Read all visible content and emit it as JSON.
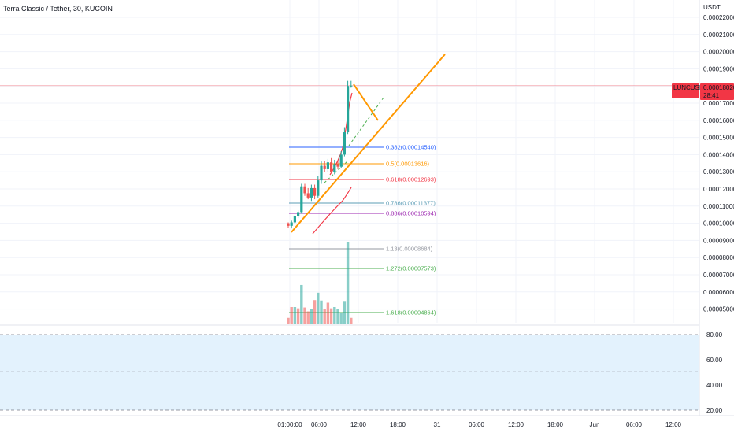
{
  "header": {
    "title": "Terra Classic / Tether, 30, KUCOIN"
  },
  "price_axis": {
    "currency": "USDT",
    "ticks": [
      "0.00022000",
      "0.00021000",
      "0.00020000",
      "0.00019000",
      "0.00018000",
      "0.00017000",
      "0.00016000",
      "0.00015000",
      "0.00014000",
      "0.00013000",
      "0.00012000",
      "0.00011000",
      "0.00010000",
      "0.00009000",
      "0.00008000",
      "0.00007000",
      "0.00006000",
      "0.00005000"
    ],
    "last_price_label": {
      "symbol": "LUNCUSDT",
      "price": "0.00018020",
      "countdown": "28:41",
      "color": "#f23645"
    }
  },
  "oscillator_axis": {
    "ticks": [
      "80.00",
      "60.00",
      "40.00",
      "20.00"
    ]
  },
  "time_axis": {
    "ticks": [
      "01:00:00",
      "06:00",
      "12:00",
      "18:00",
      "31",
      "06:00",
      "12:00",
      "18:00",
      "Jun",
      "06:00",
      "12:00"
    ]
  },
  "fib_levels": [
    {
      "ratio": "0.382",
      "price": "0.00014540",
      "color": "#2962ff"
    },
    {
      "ratio": "0.5",
      "price": "0.00013616",
      "color": "#ff9800"
    },
    {
      "ratio": "0.618",
      "price": "0.00012693",
      "color": "#f23645"
    },
    {
      "ratio": "0.786",
      "price": "0.00011377",
      "color": "#5b9cb6"
    },
    {
      "ratio": "0.886",
      "price": "0.00010594",
      "color": "#9c27b0"
    },
    {
      "ratio": "1.13",
      "price": "0.00008684",
      "color": "#9598a1"
    },
    {
      "ratio": "1.272",
      "price": "0.00007573",
      "color": "#4caf50"
    },
    {
      "ratio": "1.618",
      "price": "0.00004864",
      "color": "#4caf50"
    }
  ],
  "colors": {
    "up": "#26a69a",
    "down": "#ef5350",
    "trendline": "#ff9800",
    "rsi_band": "#e3f2fd",
    "grid": "#f0f3fa"
  },
  "chart_data": {
    "type": "candlestick",
    "title": "Terra Classic / Tether, 30, KUCOIN",
    "y_unit": "USDT",
    "ylim": [
      4.5e-05,
      0.000225
    ],
    "grid": true,
    "candles": [
      {
        "t": 0,
        "o": 0.0001,
        "h": 0.0001005,
        "l": 9.75e-05,
        "c": 9.85e-05
      },
      {
        "t": 1,
        "o": 9.85e-05,
        "h": 0.0001015,
        "l": 9.7e-05,
        "c": 0.0001005
      },
      {
        "t": 2,
        "o": 0.0001005,
        "h": 0.0001045,
        "l": 9.95e-05,
        "c": 0.000104
      },
      {
        "t": 3,
        "o": 0.000104,
        "h": 0.0001075,
        "l": 0.000103,
        "c": 0.0001065
      },
      {
        "t": 4,
        "o": 0.0001065,
        "h": 0.000123,
        "l": 0.0001055,
        "c": 0.0001215
      },
      {
        "t": 5,
        "o": 0.0001215,
        "h": 0.000123,
        "l": 0.000116,
        "c": 0.0001175
      },
      {
        "t": 6,
        "o": 0.0001175,
        "h": 0.0001205,
        "l": 0.000114,
        "c": 0.000115
      },
      {
        "t": 7,
        "o": 0.000115,
        "h": 0.0001225,
        "l": 0.000113,
        "c": 0.0001205
      },
      {
        "t": 8,
        "o": 0.0001205,
        "h": 0.0001225,
        "l": 0.000114,
        "c": 0.000116
      },
      {
        "t": 9,
        "o": 0.000116,
        "h": 0.0001275,
        "l": 0.000115,
        "c": 0.000125
      },
      {
        "t": 10,
        "o": 0.000125,
        "h": 0.000136,
        "l": 0.000123,
        "c": 0.0001335
      },
      {
        "t": 11,
        "o": 0.0001335,
        "h": 0.0001365,
        "l": 0.00013,
        "c": 0.0001315
      },
      {
        "t": 12,
        "o": 0.0001315,
        "h": 0.0001375,
        "l": 0.00013,
        "c": 0.0001355
      },
      {
        "t": 13,
        "o": 0.0001355,
        "h": 0.000138,
        "l": 0.000129,
        "c": 0.00013
      },
      {
        "t": 14,
        "o": 0.00013,
        "h": 0.000137,
        "l": 0.0001285,
        "c": 0.0001345
      },
      {
        "t": 15,
        "o": 0.0001345,
        "h": 0.0001365,
        "l": 0.0001315,
        "c": 0.000133
      },
      {
        "t": 16,
        "o": 0.000133,
        "h": 0.000142,
        "l": 0.000132,
        "c": 0.00014
      },
      {
        "t": 17,
        "o": 0.00014,
        "h": 0.000156,
        "l": 0.000139,
        "c": 0.000153
      },
      {
        "t": 18,
        "o": 0.000153,
        "h": 0.000183,
        "l": 0.000152,
        "c": 0.00018
      },
      {
        "t": 19,
        "o": 0.00018,
        "h": 0.000183,
        "l": 0.000179,
        "c": 0.0001802
      }
    ],
    "volume": [
      {
        "v": 1.5,
        "dir": "down"
      },
      {
        "v": 4.0,
        "dir": "down"
      },
      {
        "v": 4.0,
        "dir": "up"
      },
      {
        "v": 3.7,
        "dir": "down"
      },
      {
        "v": 9.1,
        "dir": "up"
      },
      {
        "v": 3.9,
        "dir": "down"
      },
      {
        "v": 3.0,
        "dir": "down"
      },
      {
        "v": 3.5,
        "dir": "up"
      },
      {
        "v": 5.6,
        "dir": "down"
      },
      {
        "v": 7.3,
        "dir": "up"
      },
      {
        "v": 5.5,
        "dir": "up"
      },
      {
        "v": 3.6,
        "dir": "down"
      },
      {
        "v": 5.0,
        "dir": "down"
      },
      {
        "v": 3.7,
        "dir": "down"
      },
      {
        "v": 4.0,
        "dir": "up"
      },
      {
        "v": 3.5,
        "dir": "up"
      },
      {
        "v": 2.6,
        "dir": "up"
      },
      {
        "v": 5.4,
        "dir": "up"
      },
      {
        "v": 19.0,
        "dir": "up"
      },
      {
        "v": 1.5,
        "dir": "down"
      }
    ]
  }
}
